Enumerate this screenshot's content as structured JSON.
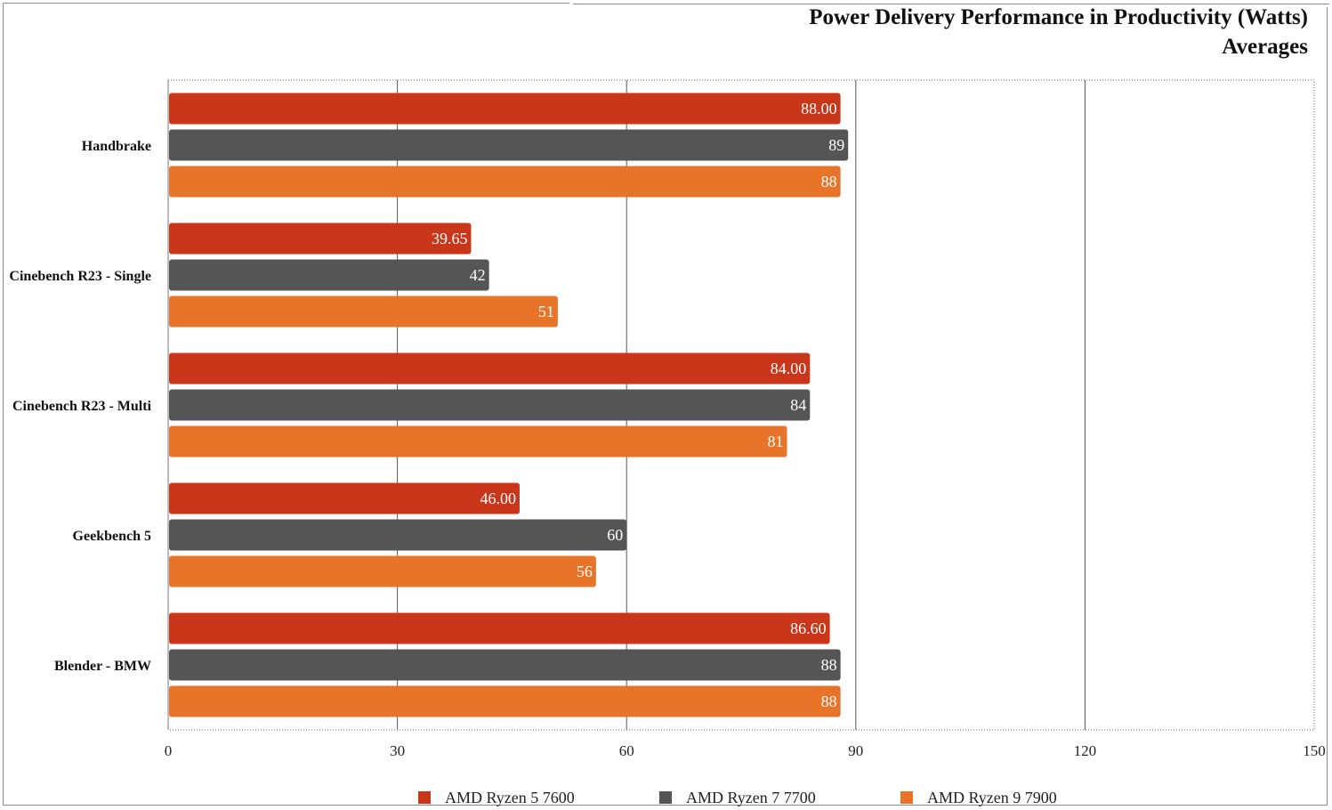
{
  "chart_data": {
    "type": "bar",
    "orientation": "horizontal",
    "title": "Power Delivery Performance in Productivity (Watts)",
    "subtitle": "Averages",
    "categories": [
      "Handbrake",
      "Cinebench R23 - Single",
      "Cinebench R23 - Multi",
      "Geekbench 5",
      "Blender - BMW"
    ],
    "series": [
      {
        "name": "AMD Ryzen 5 7600",
        "color": "#c9361a",
        "values": [
          88.0,
          39.65,
          84.0,
          46.0,
          86.6
        ],
        "labels": [
          "88.00",
          "39.65",
          "84.00",
          "46.00",
          "86.60"
        ]
      },
      {
        "name": "AMD Ryzen 7 7700",
        "color": "#555555",
        "values": [
          89,
          42,
          84,
          60,
          88
        ],
        "labels": [
          "89",
          "42",
          "84",
          "60",
          "88"
        ]
      },
      {
        "name": "AMD Ryzen 9 7900",
        "color": "#e8742a",
        "values": [
          88,
          51,
          81,
          56,
          88
        ],
        "labels": [
          "88",
          "51",
          "81",
          "56",
          "88"
        ]
      }
    ],
    "xlim": [
      0,
      150
    ],
    "xticks": [
      0,
      30,
      60,
      90,
      120,
      150
    ],
    "xlabel": "",
    "ylabel": "",
    "grid": true,
    "legend_position": "bottom"
  }
}
